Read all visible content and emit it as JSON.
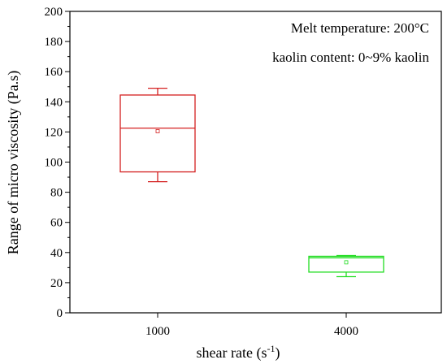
{
  "chart_data": {
    "type": "box",
    "xlabel": "shear rate (s",
    "xlabel_sup": "-1",
    "xlabel_end": ")",
    "ylabel": "Range of micro viscosity (Pa.s)",
    "ylim": [
      0,
      200
    ],
    "y_ticks": [
      0,
      20,
      40,
      60,
      80,
      100,
      120,
      140,
      160,
      180,
      200
    ],
    "y_tick_labels": [
      "0",
      "20",
      "40",
      "60",
      "80",
      "100",
      "120",
      "140",
      "160",
      "180",
      "200"
    ],
    "categories": [
      "1000",
      "4000"
    ],
    "boxes": [
      {
        "category": "1000",
        "whisker_low": 87,
        "q1": 93.5,
        "median": 122.5,
        "q3": 144.5,
        "whisker_high": 149,
        "mean": 120.5,
        "color": "#d42020"
      },
      {
        "category": "4000",
        "whisker_low": 24,
        "q1": 27,
        "median": 36.5,
        "q3": 37.5,
        "whisker_high": 38,
        "mean": 33.5,
        "color": "#22dd22"
      }
    ],
    "annotations": [
      "Melt temperature: 200°C",
      "kaolin content: 0~9% kaolin"
    ],
    "grid": false
  }
}
